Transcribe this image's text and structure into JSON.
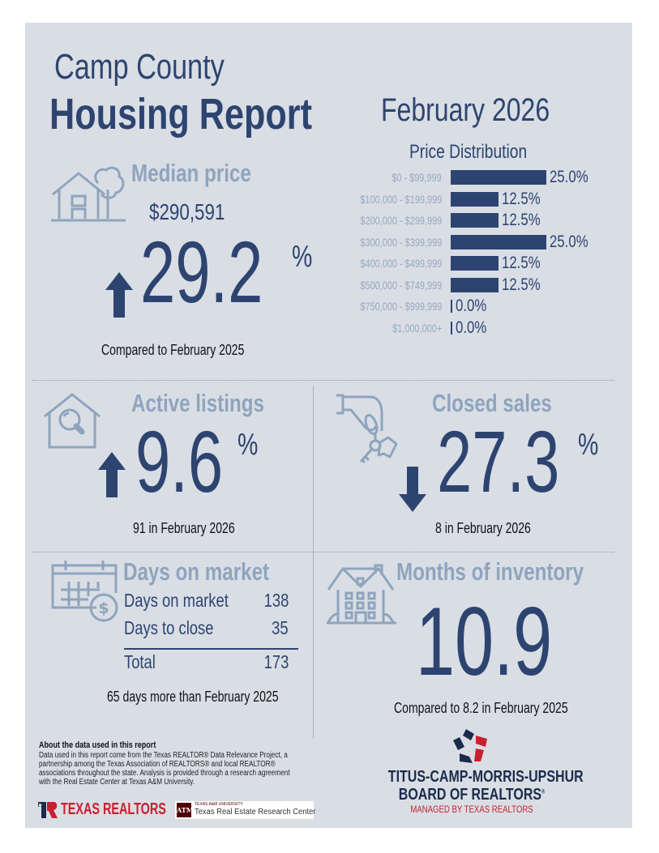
{
  "header": {
    "county": "Camp County",
    "title": "Housing Report",
    "month": "February 2026"
  },
  "median_price": {
    "title": "Median price",
    "value": "$290,591",
    "direction": "up",
    "change": "29.2",
    "pct_sign": "%",
    "note": "Compared to February 2025",
    "icon": "house-tree-icon"
  },
  "chart_data": {
    "type": "bar",
    "title": "Price Distribution",
    "orientation": "horizontal",
    "categories": [
      "$0 - $99,999",
      "$100,000 - $199,999",
      "$200,000 - $299,999",
      "$300,000 - $399,999",
      "$400,000 - $499,999",
      "$500,000 - $749,999",
      "$750,000 - $999,999",
      "$1,000,000+"
    ],
    "values": [
      25.0,
      12.5,
      12.5,
      25.0,
      12.5,
      12.5,
      0.0,
      0.0
    ],
    "labels": [
      "25.0%",
      "12.5%",
      "12.5%",
      "25.0%",
      "12.5%",
      "12.5%",
      "0.0%",
      "0.0%"
    ],
    "xlabel": "",
    "ylabel": "",
    "xlim": [
      0,
      25
    ],
    "grid": false
  },
  "active_listings": {
    "title": "Active listings",
    "direction": "up",
    "change": "9.6",
    "pct_sign": "%",
    "note": "91 in February 2026",
    "icon": "house-search-icon"
  },
  "closed_sales": {
    "title": "Closed sales",
    "direction": "down",
    "change": "27.3",
    "pct_sign": "%",
    "note": "8 in February 2026",
    "icon": "hand-keys-icon"
  },
  "days_on_market": {
    "title": "Days on market",
    "rows": [
      {
        "label": "Days on market",
        "value": "138"
      },
      {
        "label": "Days to close",
        "value": "35"
      }
    ],
    "total_label": "Total",
    "total_value": "173",
    "note": "65 days more than February 2025",
    "icon": "calendar-dollar-icon"
  },
  "months_inventory": {
    "title": "Months of inventory",
    "value": "10.9",
    "note": "Compared to 8.2 in February 2025",
    "icon": "apartment-building-icon"
  },
  "footer": {
    "about_title": "About the data used in this report",
    "about_text": "Data used in this report come from the Texas REALTOR® Data Relevance Project, a partnership among the Texas Association of REALTORS® and local REALTOR® associations throughout the state. Analysis is provided through a research agreement with the Real Estate Center at Texas A&M University.",
    "texas_realtors": "TEXAS REALTORS",
    "tamu_small": "TEXAS A&M UNIVERSITY",
    "tamu_center": "Texas Real Estate Research Center",
    "tamu_mark": "ATM",
    "board_line1": "TITUS-CAMP-MORRIS-UPSHUR",
    "board_line2": "BOARD OF REALTORS",
    "board_reg": "®",
    "board_line3": "MANAGED BY TEXAS REALTORS",
    "colors": {
      "navy": "#1c2b4a",
      "red": "#c8202f"
    }
  },
  "colors": {
    "navy": "#2e4470",
    "muted": "#8fa4bd",
    "background": "#d9dee5"
  }
}
